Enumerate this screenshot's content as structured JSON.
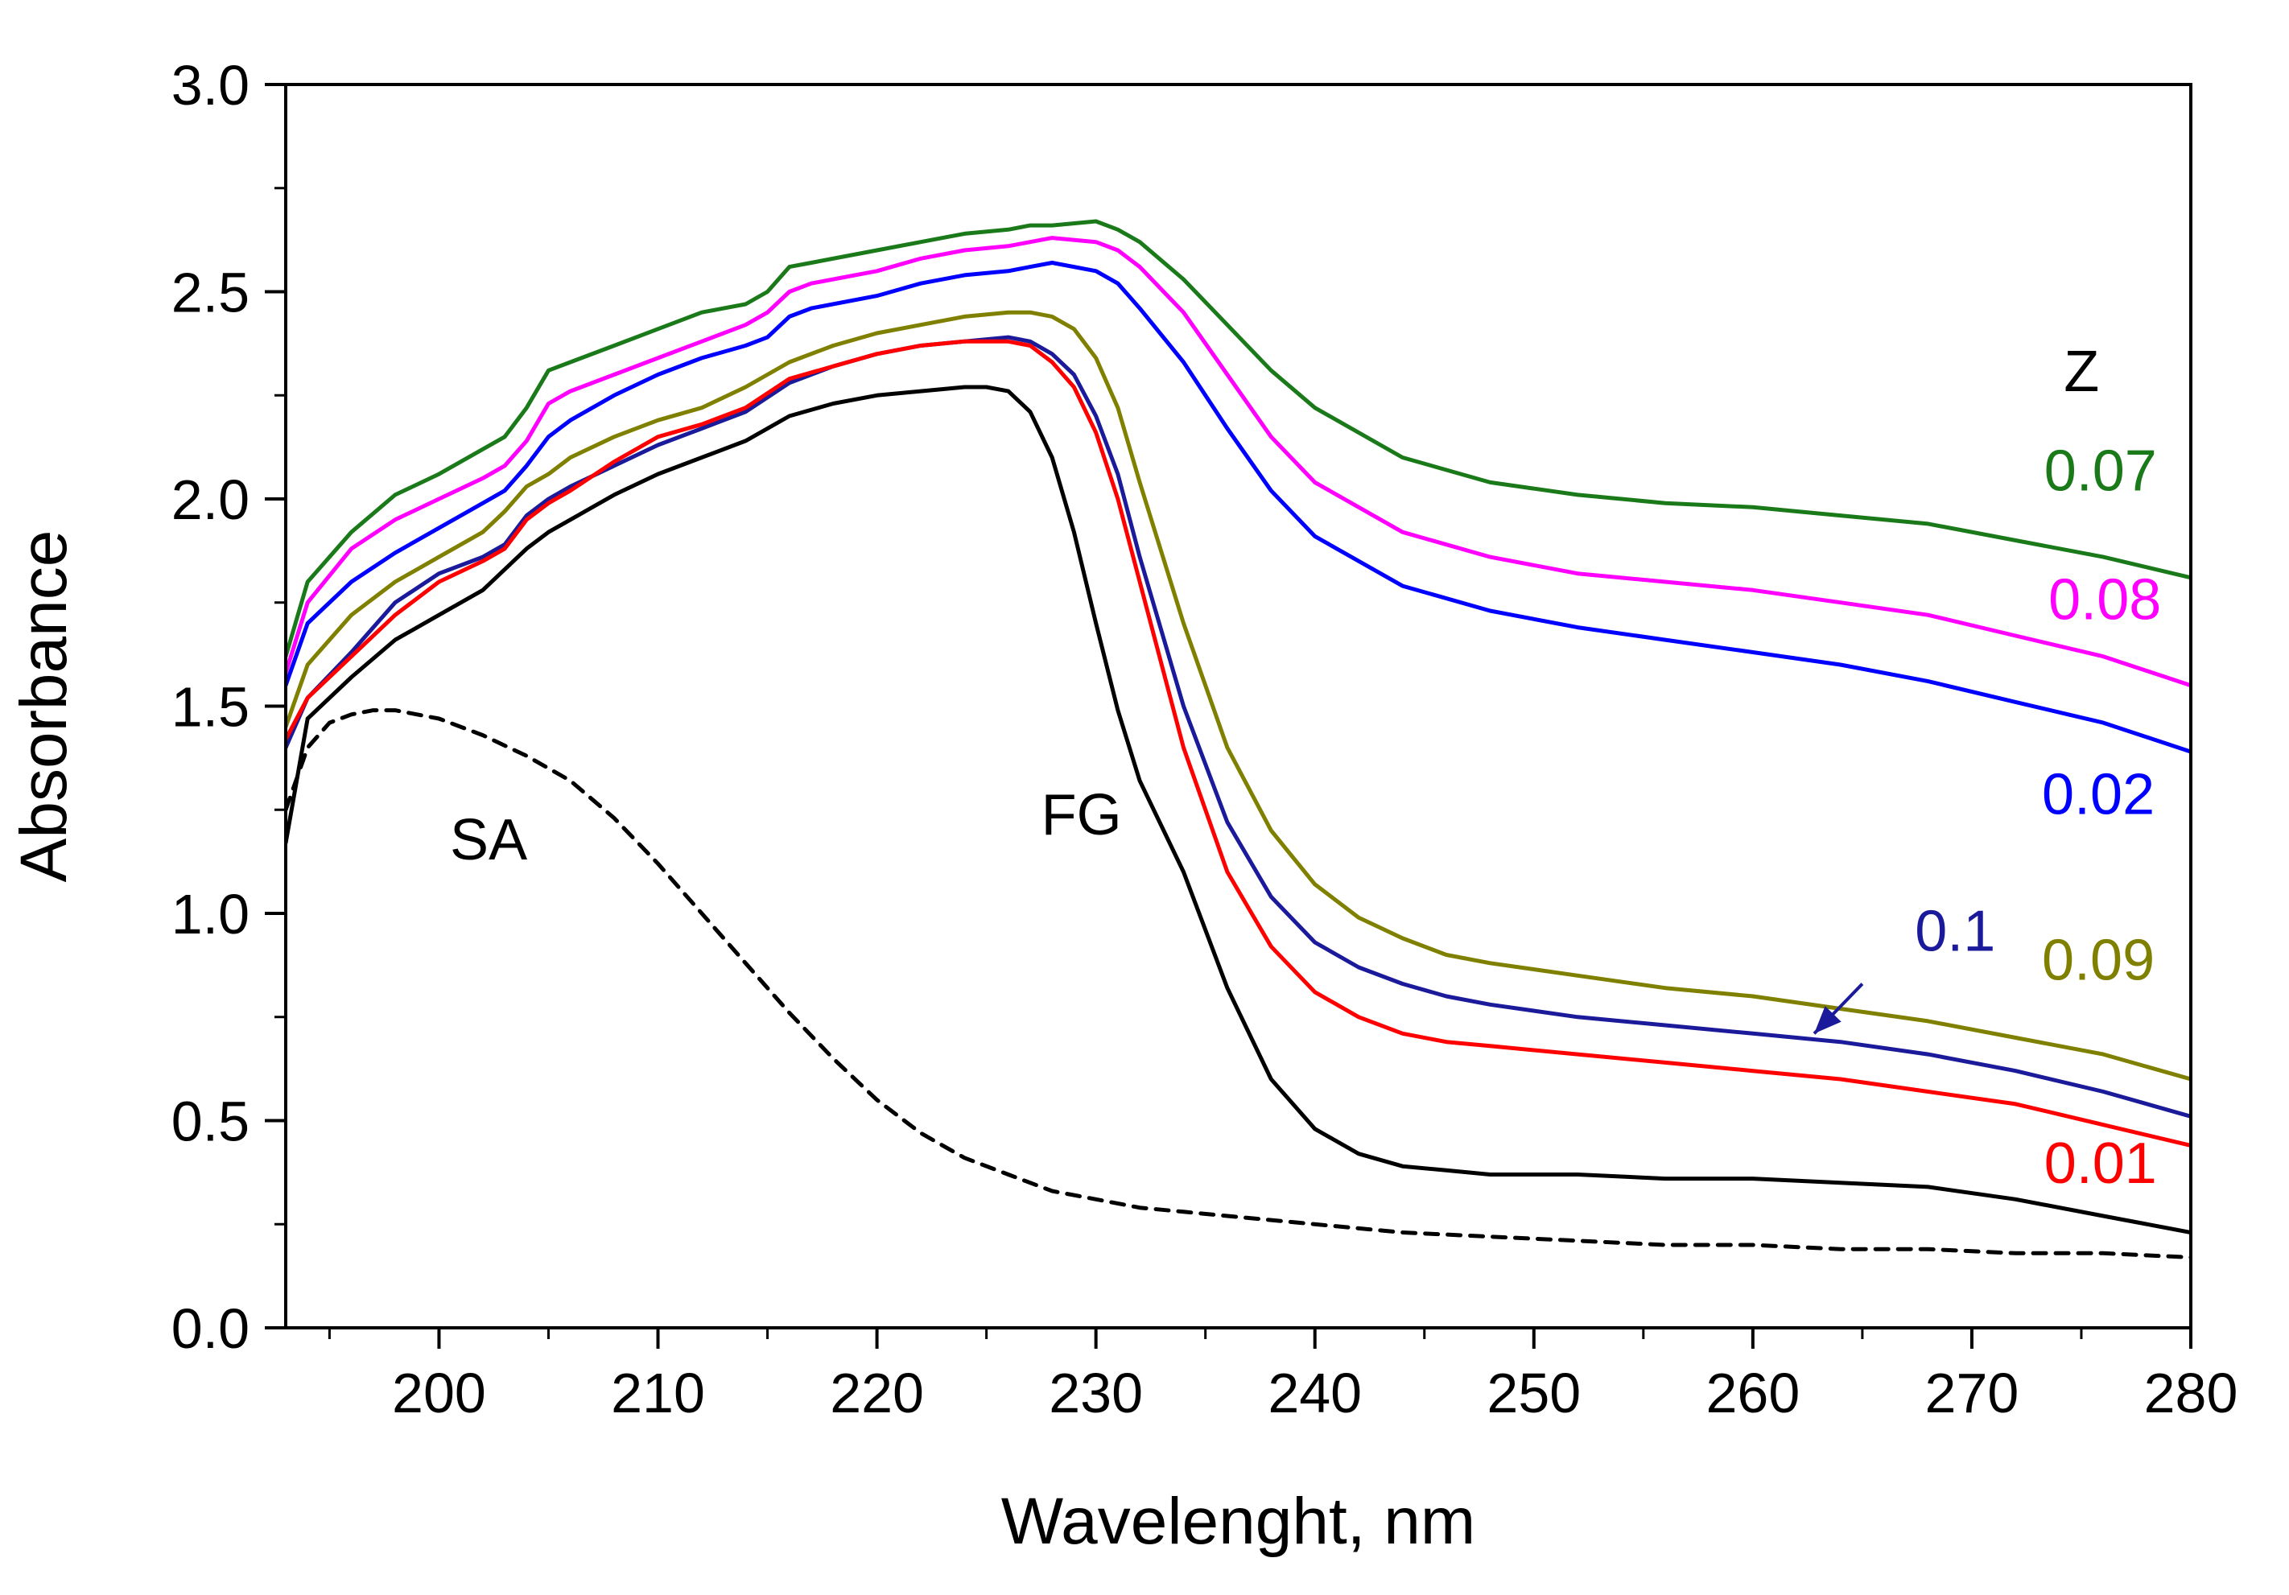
{
  "chart_data": {
    "type": "line",
    "title": "",
    "xlabel": "Wavelenght, nm",
    "ylabel": "Absorbance",
    "xlim": [
      193,
      280
    ],
    "ylim": [
      0.0,
      3.0
    ],
    "xticks": [
      200,
      210,
      220,
      230,
      240,
      250,
      260,
      270,
      280
    ],
    "yticks": [
      "0.0",
      "0.5",
      "1.0",
      "1.5",
      "2.0",
      "2.5",
      "3.0"
    ],
    "grid": false,
    "legend_title": "Z",
    "legend_title_color": "#000000",
    "series": [
      {
        "name": "0.07",
        "color": "#1a7a1a",
        "dash": false,
        "x": [
          193,
          194,
          196,
          198,
          200,
          202,
          203,
          204,
          205,
          206,
          208,
          210,
          212,
          214,
          215,
          216,
          217,
          220,
          222,
          224,
          226,
          227,
          228,
          230,
          231,
          232,
          234,
          236,
          238,
          240,
          244,
          248,
          252,
          256,
          260,
          264,
          268,
          272,
          276,
          280
        ],
        "y": [
          1.62,
          1.8,
          1.92,
          2.01,
          2.06,
          2.12,
          2.15,
          2.22,
          2.31,
          2.33,
          2.37,
          2.41,
          2.45,
          2.47,
          2.5,
          2.56,
          2.57,
          2.6,
          2.62,
          2.64,
          2.65,
          2.66,
          2.66,
          2.67,
          2.65,
          2.62,
          2.53,
          2.42,
          2.31,
          2.22,
          2.1,
          2.04,
          2.01,
          1.99,
          1.98,
          1.96,
          1.94,
          1.9,
          1.86,
          1.81
        ]
      },
      {
        "name": "0.08",
        "color": "#ff00ff",
        "dash": false,
        "x": [
          193,
          194,
          196,
          198,
          200,
          202,
          203,
          204,
          205,
          206,
          208,
          210,
          212,
          214,
          215,
          216,
          217,
          220,
          222,
          224,
          226,
          227,
          228,
          230,
          231,
          232,
          234,
          236,
          238,
          240,
          244,
          248,
          252,
          256,
          260,
          264,
          268,
          272,
          276,
          280
        ],
        "y": [
          1.58,
          1.75,
          1.88,
          1.95,
          2.0,
          2.05,
          2.08,
          2.14,
          2.23,
          2.26,
          2.3,
          2.34,
          2.38,
          2.42,
          2.45,
          2.5,
          2.52,
          2.55,
          2.58,
          2.6,
          2.61,
          2.62,
          2.63,
          2.62,
          2.6,
          2.56,
          2.45,
          2.3,
          2.15,
          2.04,
          1.92,
          1.86,
          1.82,
          1.8,
          1.78,
          1.75,
          1.72,
          1.67,
          1.62,
          1.55
        ]
      },
      {
        "name": "0.02",
        "color": "#0000ff",
        "dash": false,
        "x": [
          193,
          194,
          196,
          198,
          200,
          202,
          203,
          204,
          205,
          206,
          208,
          210,
          212,
          214,
          215,
          216,
          217,
          220,
          222,
          224,
          226,
          227,
          228,
          230,
          231,
          232,
          234,
          236,
          238,
          240,
          244,
          248,
          252,
          256,
          260,
          264,
          268,
          272,
          276,
          280
        ],
        "y": [
          1.55,
          1.7,
          1.8,
          1.87,
          1.93,
          1.99,
          2.02,
          2.08,
          2.15,
          2.19,
          2.25,
          2.3,
          2.34,
          2.37,
          2.39,
          2.44,
          2.46,
          2.49,
          2.52,
          2.54,
          2.55,
          2.56,
          2.57,
          2.55,
          2.52,
          2.46,
          2.33,
          2.17,
          2.02,
          1.91,
          1.79,
          1.73,
          1.69,
          1.66,
          1.63,
          1.6,
          1.56,
          1.51,
          1.46,
          1.39
        ]
      },
      {
        "name": "0.09",
        "color": "#808000",
        "dash": false,
        "x": [
          193,
          194,
          196,
          198,
          200,
          202,
          203,
          204,
          205,
          206,
          208,
          210,
          212,
          214,
          216,
          218,
          220,
          222,
          224,
          226,
          227,
          228,
          229,
          230,
          231,
          232,
          234,
          236,
          238,
          240,
          242,
          244,
          246,
          248,
          252,
          256,
          260,
          264,
          268,
          272,
          276,
          280
        ],
        "y": [
          1.45,
          1.6,
          1.72,
          1.8,
          1.86,
          1.92,
          1.97,
          2.03,
          2.06,
          2.1,
          2.15,
          2.19,
          2.22,
          2.27,
          2.33,
          2.37,
          2.4,
          2.42,
          2.44,
          2.45,
          2.45,
          2.44,
          2.41,
          2.34,
          2.22,
          2.04,
          1.7,
          1.4,
          1.2,
          1.07,
          0.99,
          0.94,
          0.9,
          0.88,
          0.85,
          0.82,
          0.8,
          0.77,
          0.74,
          0.7,
          0.66,
          0.6
        ]
      },
      {
        "name": "0.1",
        "color": "#1a1a9a",
        "dash": false,
        "x": [
          193,
          194,
          196,
          198,
          200,
          202,
          203,
          204,
          205,
          206,
          208,
          210,
          212,
          214,
          216,
          218,
          220,
          222,
          224,
          226,
          227,
          228,
          229,
          230,
          231,
          232,
          234,
          236,
          238,
          240,
          242,
          244,
          246,
          248,
          252,
          256,
          260,
          264,
          268,
          272,
          276,
          280
        ],
        "y": [
          1.4,
          1.52,
          1.63,
          1.75,
          1.82,
          1.86,
          1.89,
          1.96,
          2.0,
          2.03,
          2.08,
          2.13,
          2.17,
          2.21,
          2.28,
          2.32,
          2.35,
          2.37,
          2.38,
          2.39,
          2.38,
          2.35,
          2.3,
          2.2,
          2.06,
          1.86,
          1.5,
          1.22,
          1.04,
          0.93,
          0.87,
          0.83,
          0.8,
          0.78,
          0.75,
          0.73,
          0.71,
          0.69,
          0.66,
          0.62,
          0.57,
          0.51
        ]
      },
      {
        "name": "0.01",
        "color": "#ff0000",
        "dash": false,
        "x": [
          193,
          194,
          196,
          198,
          200,
          202,
          203,
          204,
          205,
          206,
          208,
          210,
          212,
          214,
          216,
          218,
          220,
          222,
          224,
          226,
          227,
          228,
          229,
          230,
          231,
          232,
          234,
          236,
          238,
          240,
          242,
          244,
          246,
          248,
          252,
          256,
          260,
          264,
          268,
          272,
          276,
          280
        ],
        "y": [
          1.42,
          1.52,
          1.62,
          1.72,
          1.8,
          1.85,
          1.88,
          1.95,
          1.99,
          2.02,
          2.09,
          2.15,
          2.18,
          2.22,
          2.29,
          2.32,
          2.35,
          2.37,
          2.38,
          2.38,
          2.37,
          2.33,
          2.27,
          2.16,
          2.0,
          1.8,
          1.4,
          1.1,
          0.92,
          0.81,
          0.75,
          0.71,
          0.69,
          0.68,
          0.66,
          0.64,
          0.62,
          0.6,
          0.57,
          0.54,
          0.49,
          0.44
        ]
      },
      {
        "name": "FG",
        "color": "#000000",
        "dash": false,
        "x": [
          193,
          194,
          196,
          198,
          200,
          202,
          203,
          204,
          205,
          206,
          208,
          210,
          212,
          214,
          216,
          218,
          220,
          222,
          224,
          225,
          226,
          227,
          228,
          229,
          230,
          231,
          232,
          234,
          236,
          238,
          240,
          242,
          244,
          246,
          248,
          252,
          256,
          260,
          264,
          268,
          272,
          276,
          280
        ],
        "y": [
          1.17,
          1.47,
          1.57,
          1.66,
          1.72,
          1.78,
          1.83,
          1.88,
          1.92,
          1.95,
          2.01,
          2.06,
          2.1,
          2.14,
          2.2,
          2.23,
          2.25,
          2.26,
          2.27,
          2.27,
          2.26,
          2.21,
          2.1,
          1.92,
          1.7,
          1.49,
          1.32,
          1.1,
          0.82,
          0.6,
          0.48,
          0.42,
          0.39,
          0.38,
          0.37,
          0.37,
          0.36,
          0.36,
          0.35,
          0.34,
          0.31,
          0.27,
          0.23
        ]
      },
      {
        "name": "SA",
        "color": "#000000",
        "dash": true,
        "x": [
          193,
          194,
          195,
          196,
          197,
          198,
          199,
          200,
          202,
          204,
          206,
          208,
          210,
          212,
          214,
          216,
          218,
          220,
          222,
          224,
          226,
          228,
          230,
          232,
          234,
          236,
          238,
          240,
          244,
          248,
          252,
          256,
          260,
          264,
          268,
          272,
          276,
          280
        ],
        "y": [
          1.25,
          1.4,
          1.46,
          1.48,
          1.49,
          1.49,
          1.48,
          1.47,
          1.43,
          1.38,
          1.32,
          1.23,
          1.12,
          1.0,
          0.88,
          0.76,
          0.65,
          0.55,
          0.47,
          0.41,
          0.37,
          0.33,
          0.31,
          0.29,
          0.28,
          0.27,
          0.26,
          0.25,
          0.23,
          0.22,
          0.21,
          0.2,
          0.2,
          0.19,
          0.19,
          0.18,
          0.18,
          0.17
        ]
      }
    ],
    "series_labels": [
      {
        "text": "0.07",
        "color": "#1a7a1a",
        "x": 273.3,
        "y": 2.02
      },
      {
        "text": "0.08",
        "color": "#ff00ff",
        "x": 273.5,
        "y": 1.71
      },
      {
        "text": "0.02",
        "color": "#0000ff",
        "x": 273.2,
        "y": 1.24
      },
      {
        "text": "0.1",
        "color": "#1a1a9a",
        "x": 267.4,
        "y": 0.91
      },
      {
        "text": "0.09",
        "color": "#808000",
        "x": 273.2,
        "y": 0.84
      },
      {
        "text": "0.01",
        "color": "#ff0000",
        "x": 273.3,
        "y": 0.35
      }
    ],
    "annotations": [
      {
        "text": "SA",
        "x": 200.5,
        "y": 1.13
      },
      {
        "text": "FG",
        "x": 227.5,
        "y": 1.19
      }
    ],
    "legend_title_pos": {
      "x": 274.2,
      "y": 2.26
    },
    "arrow": {
      "from": {
        "x": 265.0,
        "y": 0.83
      },
      "to": {
        "x": 262.8,
        "y": 0.71
      },
      "color": "#1a1a9a"
    }
  }
}
